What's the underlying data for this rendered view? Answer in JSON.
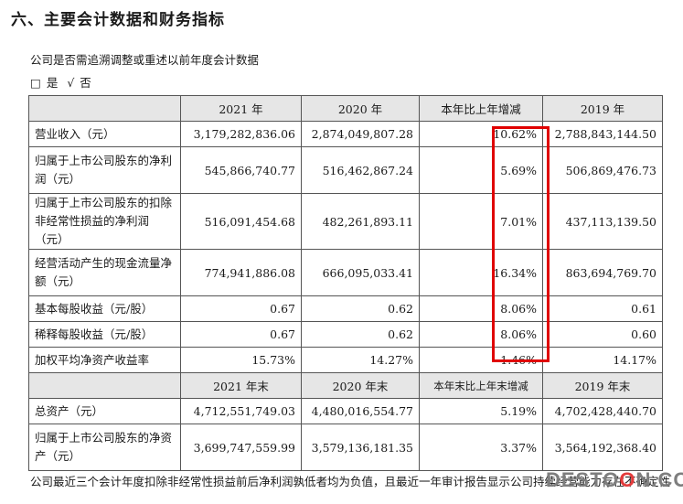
{
  "section_title": "六、主要会计数据和财务指标",
  "intro": "公司是否需追溯调整或重述以前年度会计数据",
  "options": {
    "box": "□",
    "yes": "是",
    "check": "√",
    "no": "否"
  },
  "table1": {
    "headers": [
      "",
      "2021 年",
      "2020 年",
      "本年比上年增减",
      "2019 年"
    ],
    "rows": [
      {
        "label": "营业收入（元）",
        "v2021": "3,179,282,836.06",
        "v2020": "2,874,049,807.28",
        "change": "10.62%",
        "v2019": "2,788,843,144.50"
      },
      {
        "label": "归属于上市公司股东的净利润（元）",
        "v2021": "545,866,740.77",
        "v2020": "516,462,867.24",
        "change": "5.69%",
        "v2019": "506,869,476.73"
      },
      {
        "label": "归属于上市公司股东的扣除非经常性损益的净利润（元）",
        "v2021": "516,091,454.68",
        "v2020": "482,261,893.11",
        "change": "7.01%",
        "v2019": "437,113,139.50"
      },
      {
        "label": "经营活动产生的现金流量净额（元）",
        "v2021": "774,941,886.08",
        "v2020": "666,095,033.41",
        "change": "16.34%",
        "v2019": "863,694,769.70"
      },
      {
        "label": "基本每股收益（元/股）",
        "v2021": "0.67",
        "v2020": "0.62",
        "change": "8.06%",
        "v2019": "0.61"
      },
      {
        "label": "稀释每股收益（元/股）",
        "v2021": "0.67",
        "v2020": "0.62",
        "change": "8.06%",
        "v2019": "0.60"
      },
      {
        "label": "加权平均净资产收益率",
        "v2021": "15.73%",
        "v2020": "14.27%",
        "change": "1.46%",
        "v2019": "14.17%"
      }
    ]
  },
  "table2": {
    "headers": [
      "",
      "2021 年末",
      "2020 年末",
      "本年末比上年末增减",
      "2019 年末"
    ],
    "rows": [
      {
        "label": "总资产（元）",
        "v2021": "4,712,551,749.03",
        "v2020": "4,480,016,554.77",
        "change": "5.19%",
        "v2019": "4,702,428,440.70"
      },
      {
        "label": "归属于上市公司股东的净资产（元）",
        "v2021": "3,699,747,559.99",
        "v2020": "3,579,136,181.35",
        "change": "3.37%",
        "v2019": "3,564,192,368.40"
      }
    ]
  },
  "footer": "公司最近三个会计年度扣除非经常性损益前后净利润孰低者均为负值，且最近一年审计报告显示公司持续经营能力存在不确定性",
  "watermark": {
    "pre": "DESTO",
    "o": "O",
    "post": "N.COM"
  },
  "colors": {
    "highlight_box": "#e00000",
    "header_bg": "#e6e6e6"
  }
}
